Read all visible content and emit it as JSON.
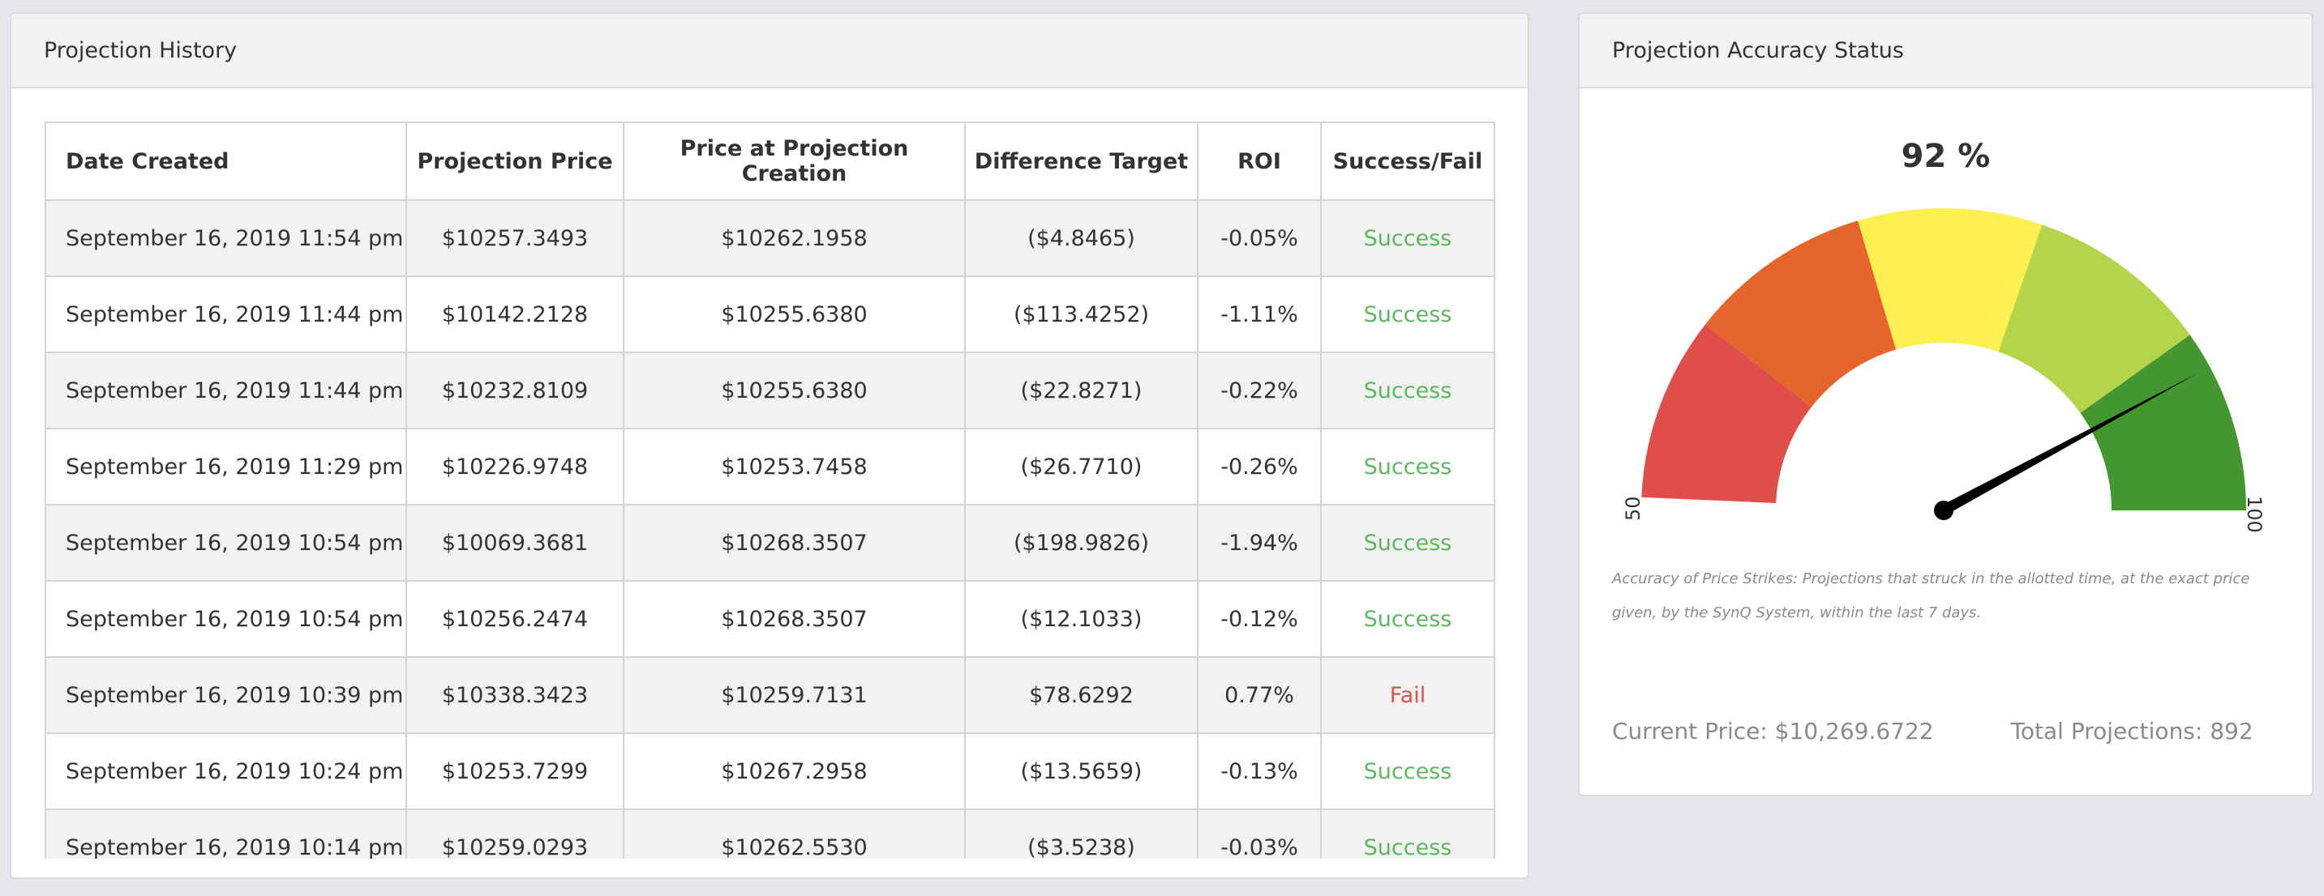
{
  "history": {
    "title": "Projection History",
    "columns": [
      "Date Created",
      "Projection Price",
      "Price at Projection Creation",
      "Difference Target",
      "ROI",
      "Success/Fail"
    ],
    "rows": [
      {
        "date": "September 16, 2019 11:54 pm",
        "projection_price": "$10257.3493",
        "creation_price": "$10262.1958",
        "difference": "($4.8465)",
        "roi": "-0.05%",
        "status": "Success"
      },
      {
        "date": "September 16, 2019 11:44 pm",
        "projection_price": "$10142.2128",
        "creation_price": "$10255.6380",
        "difference": "($113.4252)",
        "roi": "-1.11%",
        "status": "Success"
      },
      {
        "date": "September 16, 2019 11:44 pm",
        "projection_price": "$10232.8109",
        "creation_price": "$10255.6380",
        "difference": "($22.8271)",
        "roi": "-0.22%",
        "status": "Success"
      },
      {
        "date": "September 16, 2019 11:29 pm",
        "projection_price": "$10226.9748",
        "creation_price": "$10253.7458",
        "difference": "($26.7710)",
        "roi": "-0.26%",
        "status": "Success"
      },
      {
        "date": "September 16, 2019 10:54 pm",
        "projection_price": "$10069.3681",
        "creation_price": "$10268.3507",
        "difference": "($198.9826)",
        "roi": "-1.94%",
        "status": "Success"
      },
      {
        "date": "September 16, 2019 10:54 pm",
        "projection_price": "$10256.2474",
        "creation_price": "$10268.3507",
        "difference": "($12.1033)",
        "roi": "-0.12%",
        "status": "Success"
      },
      {
        "date": "September 16, 2019 10:39 pm",
        "projection_price": "$10338.3423",
        "creation_price": "$10259.7131",
        "difference": "$78.6292",
        "roi": "0.77%",
        "status": "Fail"
      },
      {
        "date": "September 16, 2019 10:24 pm",
        "projection_price": "$10253.7299",
        "creation_price": "$10267.2958",
        "difference": "($13.5659)",
        "roi": "-0.13%",
        "status": "Success"
      },
      {
        "date": "September 16, 2019 10:14 pm",
        "projection_price": "$10259.0293",
        "creation_price": "$10262.5530",
        "difference": "($3.5238)",
        "roi": "-0.03%",
        "status": "Success"
      }
    ]
  },
  "accuracy": {
    "title": "Projection Accuracy Status",
    "gauge": {
      "value": 92,
      "value_label": "92 %",
      "min": 50,
      "max": 100,
      "min_label": "50",
      "max_label": "100",
      "band_colors": [
        "#e04e4a",
        "#e5652d",
        "#fdf050",
        "#b4d44a",
        "#44962e"
      ],
      "needle_color": "#000000"
    },
    "note": "Accuracy of Price Strikes: Projections that struck in the allotted time, at the exact price given, by the SynQ System, within the last 7 days.",
    "current_price": "Current Price: $10,269.6722",
    "total_projections": "Total Projections: 892"
  },
  "colors": {
    "success": "#5cb85c",
    "fail": "#d9534f",
    "page_background": "#e6e7ea",
    "header_background": "#f2f2f3"
  }
}
